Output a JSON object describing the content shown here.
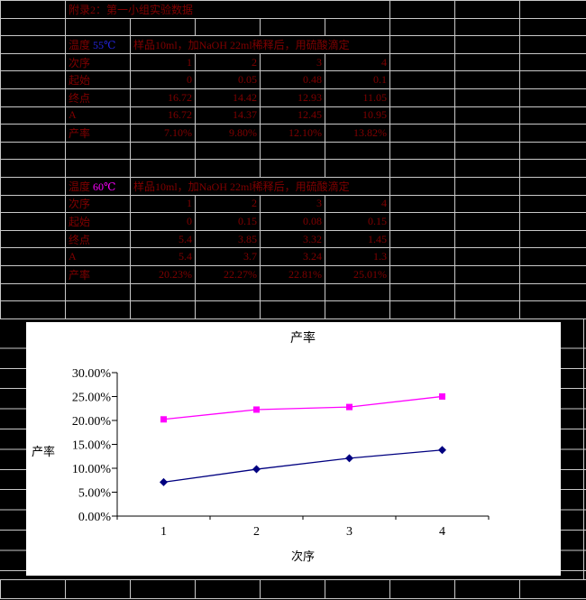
{
  "colors": {
    "background": "#000000",
    "gridline": "#c9c9c9",
    "cell_text": "#800000",
    "temp_55": "#2525dd",
    "temp_60": "#ff00ff",
    "chart_background": "#ffffff",
    "series_55": "#000080",
    "series_60": "#ff00ff"
  },
  "sheet": {
    "title": "附录2：第一小组实验数据",
    "blocks": [
      {
        "temp_label": "温度",
        "temp_value": "55℃",
        "temp_color": "#2525dd",
        "procedure": "样品10ml，加NaOH 22ml稀释后，用硫酸滴定",
        "rows": [
          {
            "label": "次序",
            "values": [
              "1",
              "2",
              "3",
              "4"
            ]
          },
          {
            "label": "起始",
            "values": [
              "0",
              "0.05",
              "0.48",
              "0.1"
            ]
          },
          {
            "label": "终点",
            "values": [
              "16.72",
              "14.42",
              "12.93",
              "11.05"
            ]
          },
          {
            "label": "A",
            "values": [
              "16.72",
              "14.37",
              "12.45",
              "10.95"
            ]
          },
          {
            "label": "产率",
            "values": [
              "7.10%",
              "9.80%",
              "12.10%",
              "13.82%"
            ]
          }
        ]
      },
      {
        "temp_label": "温度",
        "temp_value": "60℃",
        "temp_color": "#ff00ff",
        "procedure": "样品10ml，加NaOH 22ml稀释后，用硫酸滴定",
        "rows": [
          {
            "label": "次序",
            "values": [
              "1",
              "2",
              "3",
              "4"
            ]
          },
          {
            "label": "起始",
            "values": [
              "0",
              "0.15",
              "0.08",
              "0.15"
            ]
          },
          {
            "label": "终点",
            "values": [
              "5.4",
              "3.85",
              "3.32",
              "1.45"
            ]
          },
          {
            "label": "A",
            "values": [
              "5.4",
              "3.7",
              "3.24",
              "1.3"
            ]
          },
          {
            "label": "产率",
            "values": [
              "20.23%",
              "22.27%",
              "22.81%",
              "25.01%"
            ]
          }
        ]
      }
    ]
  },
  "chart_data": {
    "type": "line",
    "title": "产率",
    "xlabel": "次序",
    "ylabel": "产率",
    "categories": [
      "1",
      "2",
      "3",
      "4"
    ],
    "series": [
      {
        "name": "60℃",
        "marker": "square",
        "color": "#ff00ff",
        "values": [
          20.23,
          22.27,
          22.81,
          25.01
        ]
      },
      {
        "name": "55℃",
        "marker": "diamond",
        "color": "#000080",
        "values": [
          7.1,
          9.8,
          12.1,
          13.82
        ]
      }
    ],
    "ylim": [
      0,
      30
    ],
    "ytick_step": 5,
    "ytick_labels": [
      "0.00%",
      "5.00%",
      "10.00%",
      "15.00%",
      "20.00%",
      "25.00%",
      "30.00%"
    ],
    "xtick_labels": [
      "1",
      "2",
      "3",
      "4"
    ],
    "grid": false,
    "legend": "none",
    "plot_background": "#ffffff"
  }
}
